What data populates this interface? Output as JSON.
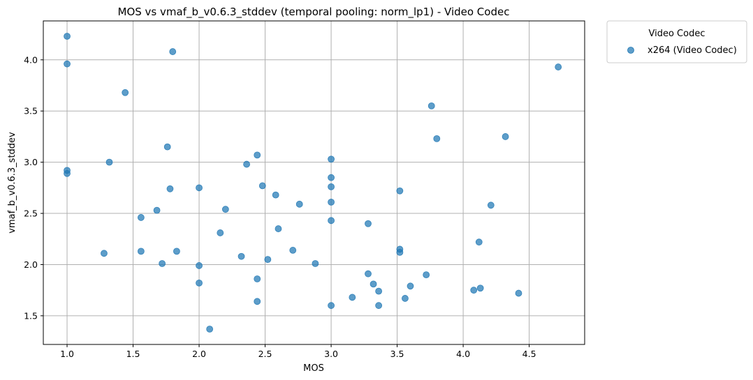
{
  "chart_data": {
    "type": "scatter",
    "title": "MOS vs vmaf_b_v0.6.3_stddev (temporal pooling: norm_lp1) - Video Codec",
    "xlabel": "MOS",
    "ylabel": "vmaf_b_v0.6.3_stddev",
    "xlim": [
      0.82,
      4.92
    ],
    "ylim": [
      1.22,
      4.38
    ],
    "xticks": [
      1.0,
      1.5,
      2.0,
      2.5,
      3.0,
      3.5,
      4.0,
      4.5
    ],
    "xtick_labels": [
      "1.0",
      "1.5",
      "2.0",
      "2.5",
      "3.0",
      "3.5",
      "4.0",
      "4.5"
    ],
    "yticks": [
      1.5,
      2.0,
      2.5,
      3.0,
      3.5,
      4.0
    ],
    "ytick_labels": [
      "1.5",
      "2.0",
      "2.5",
      "3.0",
      "3.5",
      "4.0"
    ],
    "grid": true,
    "legend": {
      "title": "Video Codec",
      "placement": "outside-top-right",
      "entries": [
        "x264 (Video Codec)"
      ]
    },
    "series": [
      {
        "name": "x264 (Video Codec)",
        "color": "#1f77b4",
        "points": [
          [
            1.0,
            4.23
          ],
          [
            1.0,
            3.96
          ],
          [
            1.0,
            2.92
          ],
          [
            1.0,
            2.89
          ],
          [
            1.28,
            2.11
          ],
          [
            1.32,
            3.0
          ],
          [
            1.44,
            3.68
          ],
          [
            1.56,
            2.46
          ],
          [
            1.56,
            2.13
          ],
          [
            1.68,
            2.53
          ],
          [
            1.72,
            2.01
          ],
          [
            1.76,
            3.15
          ],
          [
            1.78,
            2.74
          ],
          [
            1.8,
            4.08
          ],
          [
            1.83,
            2.13
          ],
          [
            2.0,
            2.75
          ],
          [
            2.0,
            1.99
          ],
          [
            2.0,
            1.82
          ],
          [
            2.08,
            1.37
          ],
          [
            2.16,
            2.31
          ],
          [
            2.2,
            2.54
          ],
          [
            2.32,
            2.08
          ],
          [
            2.36,
            2.98
          ],
          [
            2.44,
            3.07
          ],
          [
            2.44,
            1.86
          ],
          [
            2.44,
            1.64
          ],
          [
            2.48,
            2.77
          ],
          [
            2.52,
            2.05
          ],
          [
            2.58,
            2.68
          ],
          [
            2.6,
            2.35
          ],
          [
            2.71,
            2.14
          ],
          [
            2.76,
            2.59
          ],
          [
            2.88,
            2.01
          ],
          [
            3.0,
            3.03
          ],
          [
            3.0,
            2.85
          ],
          [
            3.0,
            2.76
          ],
          [
            3.0,
            2.61
          ],
          [
            3.0,
            2.43
          ],
          [
            3.0,
            1.6
          ],
          [
            3.16,
            1.68
          ],
          [
            3.28,
            2.4
          ],
          [
            3.28,
            1.91
          ],
          [
            3.32,
            1.81
          ],
          [
            3.36,
            1.74
          ],
          [
            3.36,
            1.6
          ],
          [
            3.52,
            2.72
          ],
          [
            3.52,
            2.15
          ],
          [
            3.52,
            2.12
          ],
          [
            3.56,
            1.67
          ],
          [
            3.6,
            1.79
          ],
          [
            3.72,
            1.9
          ],
          [
            3.76,
            3.55
          ],
          [
            3.8,
            3.23
          ],
          [
            4.08,
            1.75
          ],
          [
            4.12,
            2.22
          ],
          [
            4.13,
            1.77
          ],
          [
            4.21,
            2.58
          ],
          [
            4.32,
            3.25
          ],
          [
            4.42,
            1.72
          ],
          [
            4.72,
            3.93
          ]
        ]
      }
    ]
  }
}
